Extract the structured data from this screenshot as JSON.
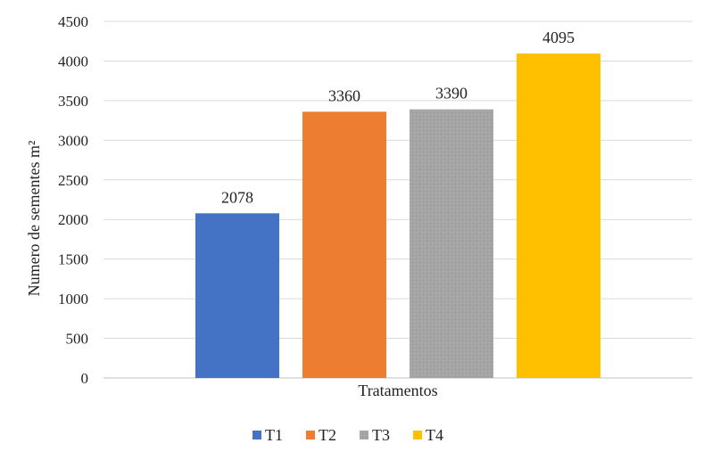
{
  "chart_data": {
    "type": "bar",
    "title": "",
    "xlabel": "Tratamentos",
    "ylabel": "Numero de sementes m²",
    "ylim": [
      0,
      4500
    ],
    "yticks": [
      0,
      500,
      1000,
      1500,
      2000,
      2500,
      3000,
      3500,
      4000,
      4500
    ],
    "grid": true,
    "legend_position": "bottom",
    "series": [
      {
        "name": "T1",
        "value": 2078,
        "label": "2078",
        "color": "#4472C4"
      },
      {
        "name": "T2",
        "value": 3360,
        "label": "3360",
        "color": "#ED7D31"
      },
      {
        "name": "T3",
        "value": 3390,
        "label": "3390",
        "color": "#A5A5A5"
      },
      {
        "name": "T4",
        "value": 4095,
        "label": "4095",
        "color": "#FFC000"
      }
    ]
  }
}
